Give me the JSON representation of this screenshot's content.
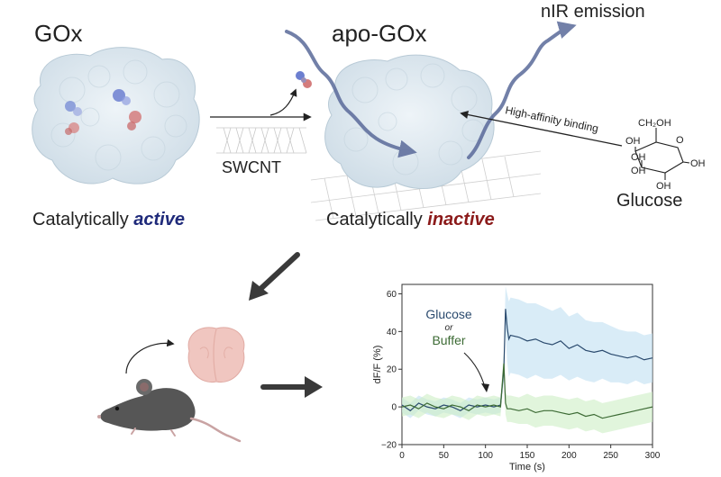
{
  "labels": {
    "gox": "GOx",
    "apo_gox": "apo-GOx",
    "nir_emission": "nIR emission",
    "swcnt": "SWCNT",
    "catalytically_active_prefix": "Catalytically ",
    "catalytically_active_word": "active",
    "catalytically_inactive_prefix": "Catalytically ",
    "catalytically_inactive_word": "inactive",
    "high_affinity_binding": "High-affinity binding",
    "glucose": "Glucose",
    "glucose_molecule": {
      "ch2oh": "CH₂OH",
      "o": "O",
      "oh": "OH"
    }
  },
  "colors": {
    "active": "#1f2a7a",
    "inactive": "#8b1a1a",
    "glucose_series": "#2a4a6e",
    "buffer_series": "#3d6b35",
    "glucose_band": "#bfe0f2",
    "buffer_band": "#cdeec4",
    "wave_arrow": "#5a6a9a"
  },
  "chart_data": {
    "type": "line",
    "xlabel": "Time (s)",
    "ylabel": "dF/F (%)",
    "xlim": [
      0,
      300
    ],
    "ylim": [
      -20,
      65
    ],
    "xticks": [
      0,
      50,
      100,
      150,
      200,
      250,
      300
    ],
    "yticks": [
      -20,
      0,
      20,
      40,
      60
    ],
    "legend": {
      "glucose": "Glucose",
      "or": "or",
      "buffer": "Buffer"
    },
    "series": [
      {
        "name": "Glucose",
        "x": [
          0,
          10,
          20,
          30,
          40,
          50,
          60,
          70,
          80,
          90,
          100,
          110,
          118,
          122,
          124,
          126,
          128,
          130,
          140,
          150,
          160,
          170,
          180,
          190,
          200,
          210,
          220,
          230,
          240,
          250,
          260,
          270,
          280,
          290,
          300
        ],
        "y": [
          1,
          -2,
          2,
          0,
          -1,
          1,
          0,
          -2,
          1,
          0,
          1,
          0,
          1,
          20,
          52,
          42,
          36,
          38,
          37,
          35,
          36,
          34,
          33,
          35,
          31,
          33,
          30,
          29,
          30,
          28,
          27,
          26,
          27,
          25,
          26
        ],
        "band": [
          4,
          4,
          4,
          4,
          4,
          4,
          4,
          4,
          4,
          4,
          4,
          4,
          4,
          6,
          12,
          18,
          20,
          20,
          20,
          20,
          19,
          19,
          18,
          18,
          17,
          17,
          16,
          16,
          15,
          15,
          14,
          14,
          13,
          13,
          13
        ]
      },
      {
        "name": "Buffer",
        "x": [
          0,
          10,
          20,
          30,
          40,
          50,
          60,
          70,
          80,
          90,
          100,
          110,
          118,
          122,
          124,
          126,
          130,
          140,
          150,
          160,
          170,
          180,
          190,
          200,
          210,
          220,
          230,
          240,
          250,
          260,
          270,
          280,
          290,
          300
        ],
        "y": [
          0,
          1,
          -1,
          2,
          0,
          -1,
          1,
          0,
          -2,
          1,
          0,
          1,
          0,
          23,
          2,
          -1,
          -1,
          -2,
          -1,
          -3,
          -2,
          -2,
          -3,
          -4,
          -3,
          -5,
          -4,
          -6,
          -5,
          -4,
          -3,
          -2,
          -1,
          0
        ],
        "band": [
          5,
          5,
          5,
          5,
          5,
          5,
          5,
          5,
          5,
          5,
          5,
          5,
          5,
          6,
          6,
          7,
          7,
          7,
          8,
          8,
          8,
          8,
          8,
          8,
          8,
          8,
          8,
          8,
          8,
          8,
          8,
          8,
          8,
          8
        ]
      }
    ]
  }
}
